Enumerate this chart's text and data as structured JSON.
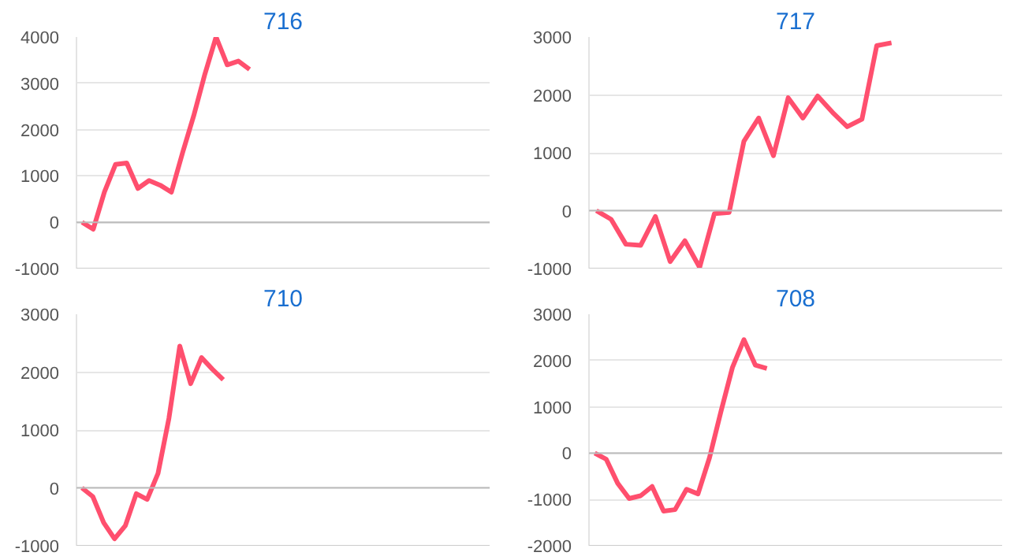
{
  "chart_data": [
    {
      "type": "line",
      "title": "716",
      "categories": [
        null,
        null,
        null,
        null,
        null,
        null,
        null,
        null,
        null,
        null,
        null,
        null,
        null,
        null,
        null,
        null,
        null,
        null,
        null,
        null,
        null,
        null,
        null,
        null,
        null,
        null,
        null,
        null,
        null,
        null,
        null,
        null,
        null,
        null,
        null,
        null,
        null
      ],
      "series": [
        {
          "color": "#ff4f6e",
          "values": [
            0,
            -150,
            650,
            1250,
            1280,
            730,
            900,
            800,
            650,
            1500,
            2300,
            3200,
            4000,
            3400,
            3480,
            3300,
            null,
            null,
            null,
            null,
            null,
            null,
            null,
            null,
            null,
            null,
            null,
            null,
            null,
            null,
            null,
            null,
            null,
            null,
            null,
            null,
            null
          ]
        }
      ],
      "ylim": [
        -1000,
        4000
      ],
      "yticks": [
        -1000,
        0,
        1000,
        2000,
        3000,
        4000
      ],
      "grid": "y",
      "tick_labels": "y",
      "ref_lines": [
        {
          "axis": "y",
          "value": 0,
          "color": "#bbbbbb"
        }
      ]
    },
    {
      "type": "line",
      "title": "717",
      "categories": [
        null,
        null,
        null,
        null,
        null,
        null,
        null,
        null,
        null,
        null,
        null,
        null,
        null,
        null,
        null,
        null,
        null,
        null,
        null,
        null,
        null,
        null,
        null,
        null,
        null,
        null,
        null,
        null
      ],
      "series": [
        {
          "color": "#ff4f6e",
          "values": [
            0,
            -150,
            -580,
            -600,
            -100,
            -880,
            -520,
            -980,
            -50,
            -30,
            1200,
            1600,
            950,
            1950,
            1600,
            1980,
            1700,
            1450,
            1580,
            2850,
            2900,
            null,
            null,
            null,
            null,
            null,
            null,
            null
          ]
        }
      ],
      "ylim": [
        -1000,
        3000
      ],
      "yticks": [
        -1000,
        0,
        1000,
        2000,
        3000
      ],
      "grid": "y",
      "tick_labels": "y",
      "ref_lines": [
        {
          "axis": "y",
          "value": 0,
          "color": "#bbbbbb"
        }
      ]
    },
    {
      "type": "line",
      "title": "710",
      "categories": [
        null,
        null,
        null,
        null,
        null,
        null,
        null,
        null,
        null,
        null,
        null,
        null,
        null,
        null,
        null,
        null,
        null,
        null,
        null,
        null,
        null,
        null,
        null,
        null,
        null,
        null,
        null,
        null,
        null,
        null,
        null,
        null,
        null,
        null,
        null,
        null,
        null,
        null
      ],
      "series": [
        {
          "color": "#ff4f6e",
          "values": [
            0,
            -150,
            -600,
            -880,
            -650,
            -100,
            -200,
            250,
            1200,
            2450,
            1800,
            2250,
            2050,
            1870,
            null,
            null,
            null,
            null,
            null,
            null,
            null,
            null,
            null,
            null,
            null,
            null,
            null,
            null,
            null,
            null,
            null,
            null,
            null,
            null,
            null,
            null,
            null,
            null
          ]
        }
      ],
      "ylim": [
        -1000,
        3000
      ],
      "yticks": [
        -1000,
        0,
        1000,
        2000,
        3000
      ],
      "grid": "y",
      "tick_labels": "y",
      "ref_lines": [
        {
          "axis": "y",
          "value": 0,
          "color": "#bbbbbb"
        }
      ]
    },
    {
      "type": "line",
      "title": "708",
      "categories": [
        null,
        null,
        null,
        null,
        null,
        null,
        null,
        null,
        null,
        null,
        null,
        null,
        null,
        null,
        null,
        null,
        null,
        null,
        null,
        null,
        null,
        null,
        null,
        null,
        null,
        null,
        null,
        null,
        null,
        null,
        null,
        null,
        null,
        null,
        null,
        null
      ],
      "series": [
        {
          "color": "#ff4f6e",
          "values": [
            0,
            -130,
            -650,
            -980,
            -920,
            -720,
            -1250,
            -1220,
            -780,
            -880,
            -100,
            900,
            1850,
            2450,
            1900,
            1830,
            null,
            null,
            null,
            null,
            null,
            null,
            null,
            null,
            null,
            null,
            null,
            null,
            null,
            null,
            null,
            null,
            null,
            null,
            null,
            null
          ]
        }
      ],
      "ylim": [
        -2000,
        3000
      ],
      "yticks": [
        -2000,
        -1000,
        0,
        1000,
        2000,
        3000
      ],
      "grid": "y",
      "tick_labels": "y",
      "ref_lines": [
        {
          "axis": "y",
          "value": 0,
          "color": "#bbbbbb"
        }
      ]
    }
  ]
}
